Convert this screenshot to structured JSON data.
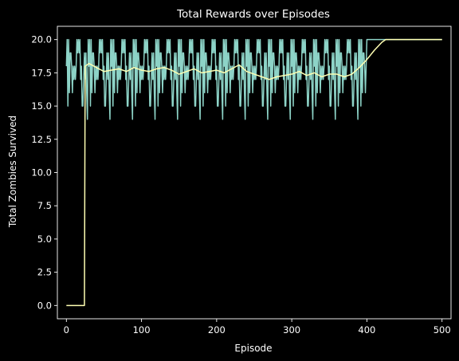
{
  "chart_data": {
    "type": "line",
    "title": "Total Rewards over Episodes",
    "xlabel": "Episode",
    "ylabel": "Total Zombies Survived",
    "xlim": [
      -12,
      512
    ],
    "ylim": [
      -1,
      21
    ],
    "xticks": [
      0,
      100,
      200,
      300,
      400,
      500
    ],
    "yticks": [
      0.0,
      2.5,
      5.0,
      7.5,
      10.0,
      12.5,
      15.0,
      17.5,
      20.0
    ],
    "ytick_labels": [
      "0.0",
      "2.5",
      "5.0",
      "7.5",
      "10.0",
      "12.5",
      "15.0",
      "17.5",
      "20.0"
    ],
    "grid": false,
    "background": "#000000",
    "foreground": "#ffffff",
    "series": [
      {
        "role": "raw",
        "color": "#8dd3c7",
        "pattern": {
          "start": 0,
          "end": 500,
          "base": [
            18,
            15,
            20,
            17,
            19,
            14,
            18,
            20,
            17,
            16,
            19,
            18,
            20,
            17,
            15,
            18,
            19,
            20,
            16,
            17
          ],
          "noisy_until": 400,
          "flat_value": 20
        }
      },
      {
        "role": "moving-average",
        "color": "#ffffb3",
        "points": [
          [
            0,
            0
          ],
          [
            24,
            0
          ],
          [
            25,
            18.0
          ],
          [
            30,
            18.2
          ],
          [
            40,
            17.9
          ],
          [
            50,
            17.6
          ],
          [
            60,
            17.7
          ],
          [
            70,
            17.8
          ],
          [
            80,
            17.6
          ],
          [
            90,
            17.9
          ],
          [
            100,
            17.7
          ],
          [
            110,
            17.6
          ],
          [
            120,
            17.8
          ],
          [
            130,
            17.9
          ],
          [
            140,
            17.7
          ],
          [
            150,
            17.4
          ],
          [
            160,
            17.6
          ],
          [
            170,
            17.8
          ],
          [
            180,
            17.5
          ],
          [
            190,
            17.6
          ],
          [
            200,
            17.7
          ],
          [
            210,
            17.5
          ],
          [
            220,
            17.8
          ],
          [
            230,
            18.1
          ],
          [
            240,
            17.6
          ],
          [
            250,
            17.4
          ],
          [
            260,
            17.2
          ],
          [
            270,
            17.0
          ],
          [
            280,
            17.2
          ],
          [
            290,
            17.3
          ],
          [
            300,
            17.4
          ],
          [
            310,
            17.6
          ],
          [
            320,
            17.3
          ],
          [
            330,
            17.5
          ],
          [
            340,
            17.2
          ],
          [
            350,
            17.4
          ],
          [
            360,
            17.4
          ],
          [
            370,
            17.2
          ],
          [
            380,
            17.4
          ],
          [
            390,
            17.9
          ],
          [
            400,
            18.5
          ],
          [
            410,
            19.2
          ],
          [
            420,
            19.8
          ],
          [
            425,
            20.0
          ],
          [
            500,
            20.0
          ]
        ]
      }
    ]
  }
}
